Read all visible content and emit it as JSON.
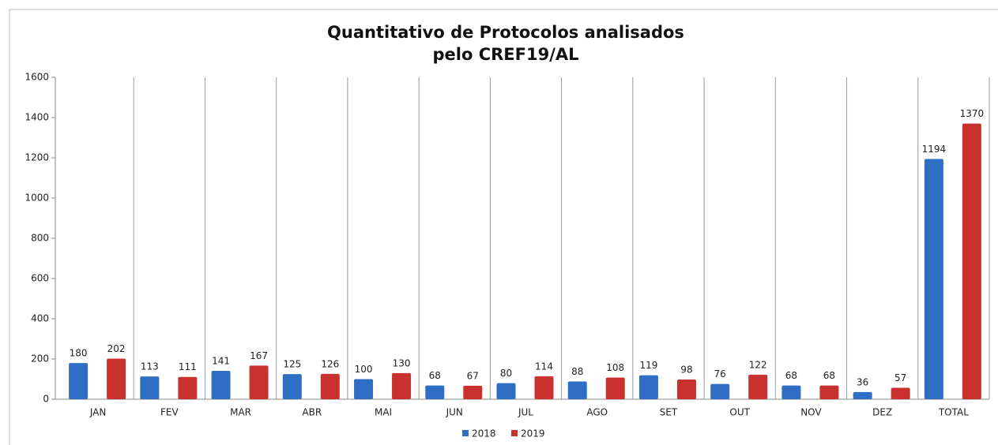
{
  "chart_data": {
    "type": "bar",
    "title": [
      "Quantitativo de Protocolos analisados",
      "pelo CREF19/AL"
    ],
    "categories": [
      "JAN",
      "FEV",
      "MAR",
      "ABR",
      "MAI",
      "JUN",
      "JUL",
      "AGO",
      "SET",
      "OUT",
      "NOV",
      "DEZ",
      "TOTAL"
    ],
    "series": [
      {
        "name": "2018",
        "color": "#2f6ec4",
        "values": [
          180,
          113,
          141,
          125,
          100,
          68,
          80,
          88,
          119,
          76,
          68,
          36,
          1194
        ]
      },
      {
        "name": "2019",
        "color": "#c8312d",
        "values": [
          202,
          111,
          167,
          126,
          130,
          67,
          114,
          108,
          98,
          122,
          68,
          57,
          1370
        ]
      }
    ],
    "ylim": [
      0,
      1600
    ],
    "yticks": [
      0,
      200,
      400,
      600,
      800,
      1000,
      1200,
      1400,
      1600
    ],
    "legend": "bottom"
  }
}
